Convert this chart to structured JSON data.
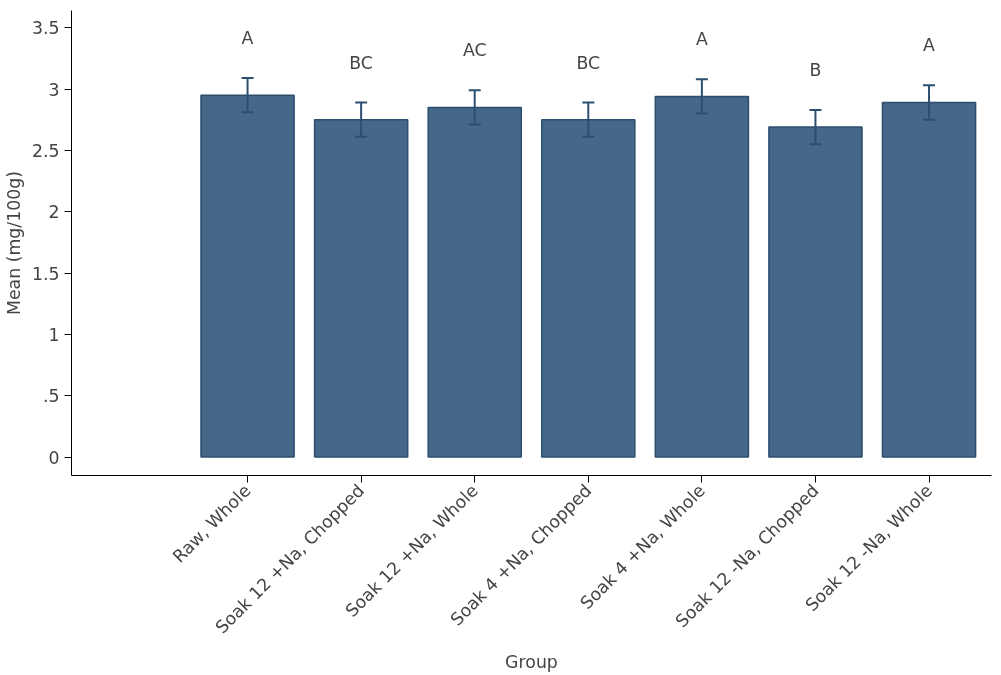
{
  "chart_data": {
    "type": "bar",
    "xlabel": "Group",
    "ylabel": "Mean (mg/100g)",
    "categories": [
      "Raw, Whole",
      "Soak 12 +Na, Chopped",
      "Soak 12 +Na, Whole",
      "Soak 4 +Na, Chopped",
      "Soak 4 +Na, Whole",
      "Soak 12 -Na, Chopped",
      "Soak 12 -Na, Whole"
    ],
    "series": [
      {
        "color": "#456789",
        "values": [
          2.95,
          2.75,
          2.85,
          2.75,
          2.94,
          2.69,
          2.89
        ],
        "errors": [
          0.14,
          0.14,
          0.14,
          0.14,
          0.14,
          0.14,
          0.14
        ]
      }
    ],
    "ylim": [
      -0.15,
      3.64
    ],
    "yticks": [
      0,
      {
        "value": 0.5,
        "label": ".5"
      },
      1,
      1.5,
      2,
      2.5,
      3,
      3.5
    ],
    "grid": false,
    "annotations": [
      "A",
      "BC",
      "AC",
      "BC",
      "A",
      "B",
      "A"
    ]
  }
}
